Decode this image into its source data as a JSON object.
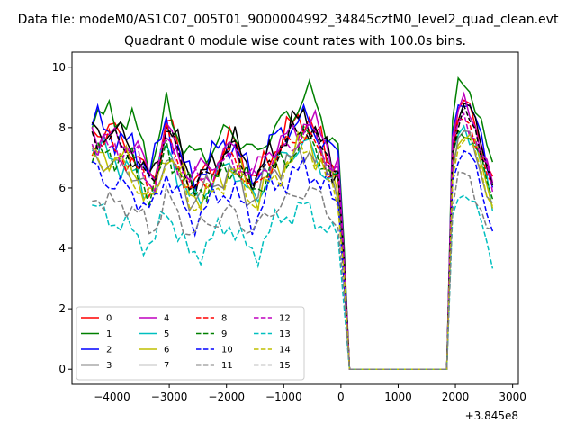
{
  "suptitle": "Data file: modeM0/AS1C07_005T01_9000004992_34845cztM0_level2_quad_clean.evt",
  "chart_data": {
    "type": "line",
    "title": "Quadrant 0 module wise count rates with 100.0s bins.",
    "xlabel": "",
    "ylabel": "",
    "x_offset_label": "+3.845e8",
    "xlim": [
      -4700,
      3100
    ],
    "ylim": [
      -0.5,
      10.5
    ],
    "xticks": [
      -4000,
      -3000,
      -2000,
      -1000,
      0,
      1000,
      2000,
      3000
    ],
    "xtick_labels": [
      "−4000",
      "−3000",
      "−2000",
      "−1000",
      "0",
      "1000",
      "2000",
      "3000"
    ],
    "yticks": [
      0,
      2,
      4,
      6,
      8,
      10
    ],
    "ytick_labels": [
      "0",
      "2",
      "4",
      "6",
      "8",
      "10"
    ],
    "legend_position": "lower-left",
    "legend_columns": 4,
    "series": [
      {
        "name": "0",
        "color": "#ff0000",
        "dash": "solid",
        "level": 7.0,
        "amp": 1.0
      },
      {
        "name": "1",
        "color": "#008000",
        "dash": "solid",
        "level": 7.6,
        "amp": 1.1
      },
      {
        "name": "2",
        "color": "#0000ff",
        "dash": "solid",
        "level": 7.1,
        "amp": 1.0
      },
      {
        "name": "3",
        "color": "#000000",
        "dash": "solid",
        "level": 7.0,
        "amp": 1.0
      },
      {
        "name": "4",
        "color": "#bf00bf",
        "dash": "solid",
        "level": 7.0,
        "amp": 1.0
      },
      {
        "name": "5",
        "color": "#00bfbf",
        "dash": "solid",
        "level": 6.3,
        "amp": 0.9
      },
      {
        "name": "6",
        "color": "#bfbf00",
        "dash": "solid",
        "level": 6.3,
        "amp": 0.9
      },
      {
        "name": "7",
        "color": "#808080",
        "dash": "solid",
        "level": 6.2,
        "amp": 0.9
      },
      {
        "name": "8",
        "color": "#ff0000",
        "dash": "dashed",
        "level": 6.6,
        "amp": 0.9
      },
      {
        "name": "9",
        "color": "#008000",
        "dash": "dashed",
        "level": 6.4,
        "amp": 0.9
      },
      {
        "name": "10",
        "color": "#0000ff",
        "dash": "dashed",
        "level": 5.6,
        "amp": 0.9
      },
      {
        "name": "11",
        "color": "#000000",
        "dash": "dashed",
        "level": 6.8,
        "amp": 0.9
      },
      {
        "name": "12",
        "color": "#bf00bf",
        "dash": "dashed",
        "level": 6.7,
        "amp": 0.9
      },
      {
        "name": "13",
        "color": "#00bfbf",
        "dash": "dashed",
        "level": 4.4,
        "amp": 0.8
      },
      {
        "name": "14",
        "color": "#bfbf00",
        "dash": "dashed",
        "level": 6.1,
        "amp": 0.9
      },
      {
        "name": "15",
        "color": "#808080",
        "dash": "dashed",
        "level": 5.0,
        "amp": 0.8
      }
    ],
    "x_range": [
      -4350,
      2650
    ],
    "x_step": 100,
    "gap_range": [
      150,
      1750
    ],
    "gap_value": 0
  }
}
